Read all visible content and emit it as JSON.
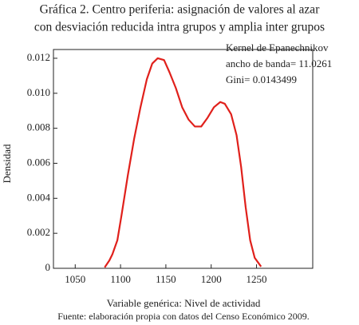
{
  "chart_data": {
    "type": "line",
    "title": [
      "Gráfica 2. Centro periferia: asignación de valores al azar",
      "con desviación reducida intra grupos y amplia inter grupos"
    ],
    "annotation": [
      "Kernel de Epanechnikov",
      "ancho de banda= 11.0261",
      "Gini= 0.0143499"
    ],
    "x_label": "Variable genérica: Nivel de actividad",
    "y_label": "Densidad",
    "source": "Fuente: elaboración propia con datos del  Censo Económico 2009.",
    "x": [
      1082.5,
      1087.7,
      1091,
      1096.5,
      1101,
      1108,
      1115,
      1122,
      1129,
      1135,
      1141,
      1148,
      1154,
      1161,
      1168,
      1175,
      1182,
      1189,
      1196,
      1203,
      1210,
      1215,
      1222,
      1228,
      1233,
      1238,
      1243,
      1248,
      1255
    ],
    "series": [
      {
        "name": "Densidad",
        "color": "#e0201b",
        "values": [
          5e-05,
          0.00045,
          0.0008,
          0.0016,
          0.003,
          0.0053,
          0.0074,
          0.0092,
          0.0108,
          0.0117,
          0.012,
          0.0119,
          0.0112,
          0.0103,
          0.0092,
          0.0085,
          0.0081,
          0.0081,
          0.0086,
          0.0092,
          0.0095,
          0.0094,
          0.0088,
          0.0076,
          0.0058,
          0.0035,
          0.0016,
          0.0006,
          0.0001
        ]
      }
    ],
    "xlim": [
      1026,
      1312
    ],
    "xticks": [
      1050,
      1100,
      1150,
      1200,
      1250
    ],
    "ylim": [
      0,
      0.0125
    ],
    "yticks": [
      0,
      0.002,
      0.004,
      0.006,
      0.008,
      {
        "value": 0.01,
        "label": "0.010"
      },
      0.012
    ]
  }
}
